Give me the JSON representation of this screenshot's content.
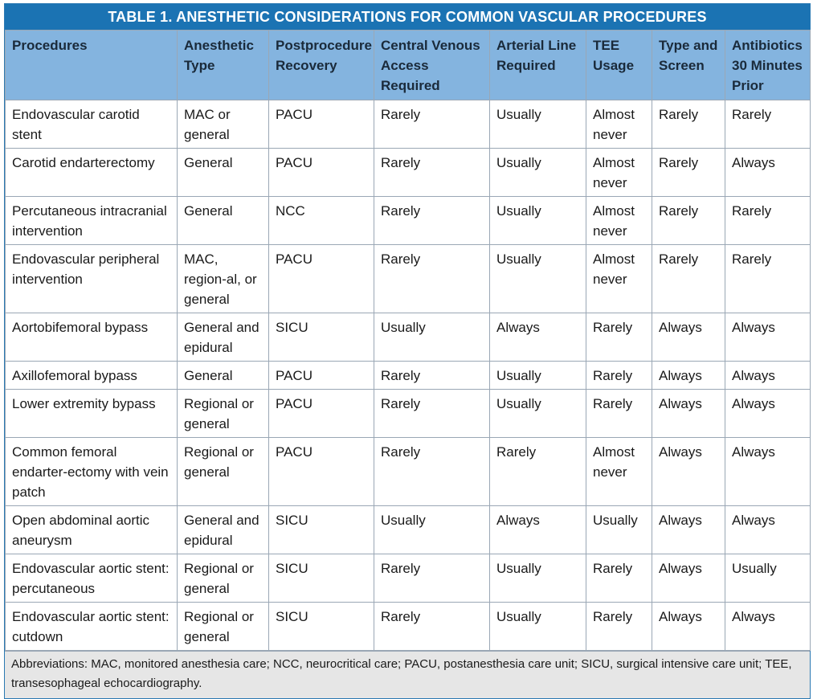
{
  "title": "TABLE 1.  ANESTHETIC CONSIDERATIONS FOR COMMON VASCULAR PROCEDURES",
  "headers": [
    "Procedures",
    "Anesthetic Type",
    "Postprocedure Recovery",
    "Central Venous Access Required",
    "Arterial Line Required",
    "TEE Usage",
    "Type and Screen",
    "Antibiotics 30 Minutes Prior"
  ],
  "rows": [
    [
      "Endovascular carotid stent",
      "MAC or general",
      "PACU",
      "Rarely",
      "Usually",
      "Almost never",
      "Rarely",
      "Rarely"
    ],
    [
      "Carotid endarterectomy",
      "General",
      "PACU",
      "Rarely",
      "Usually",
      "Almost never",
      "Rarely",
      "Always"
    ],
    [
      "Percutaneous intracranial intervention",
      "General",
      "NCC",
      "Rarely",
      "Usually",
      "Almost never",
      "Rarely",
      "Rarely"
    ],
    [
      "Endovascular peripheral intervention",
      "MAC, region-al, or general",
      "PACU",
      "Rarely",
      "Usually",
      "Almost never",
      "Rarely",
      "Rarely"
    ],
    [
      "Aortobifemoral bypass",
      "General and epidural",
      "SICU",
      "Usually",
      "Always",
      "Rarely",
      "Always",
      "Always"
    ],
    [
      "Axillofemoral bypass",
      "General",
      "PACU",
      "Rarely",
      "Usually",
      "Rarely",
      "Always",
      "Always"
    ],
    [
      "Lower extremity bypass",
      "Regional or general",
      "PACU",
      "Rarely",
      "Usually",
      "Rarely",
      "Always",
      "Always"
    ],
    [
      "Common femoral endarter-ectomy with vein patch",
      "Regional or general",
      "PACU",
      "Rarely",
      "Rarely",
      "Almost never",
      "Always",
      "Always"
    ],
    [
      "Open abdominal aortic aneurysm",
      "General and epidural",
      "SICU",
      "Usually",
      "Always",
      "Usually",
      "Always",
      "Always"
    ],
    [
      "Endovascular aortic stent: percutaneous",
      "Regional or general",
      "SICU",
      "Rarely",
      "Usually",
      "Rarely",
      "Always",
      "Usually"
    ],
    [
      "Endovascular aortic stent: cutdown",
      "Regional or general",
      "SICU",
      "Rarely",
      "Usually",
      "Rarely",
      "Always",
      "Always"
    ]
  ],
  "footnote": "Abbreviations: MAC, monitored anesthesia care; NCC, neurocritical care; PACU, postanesthesia care unit; SICU, surgical intensive care unit; TEE, transesophageal echocardiography.",
  "colors": {
    "title_bg": "#1b73b3",
    "header_bg": "#84b4df",
    "footnote_bg": "#e6e6e6"
  }
}
